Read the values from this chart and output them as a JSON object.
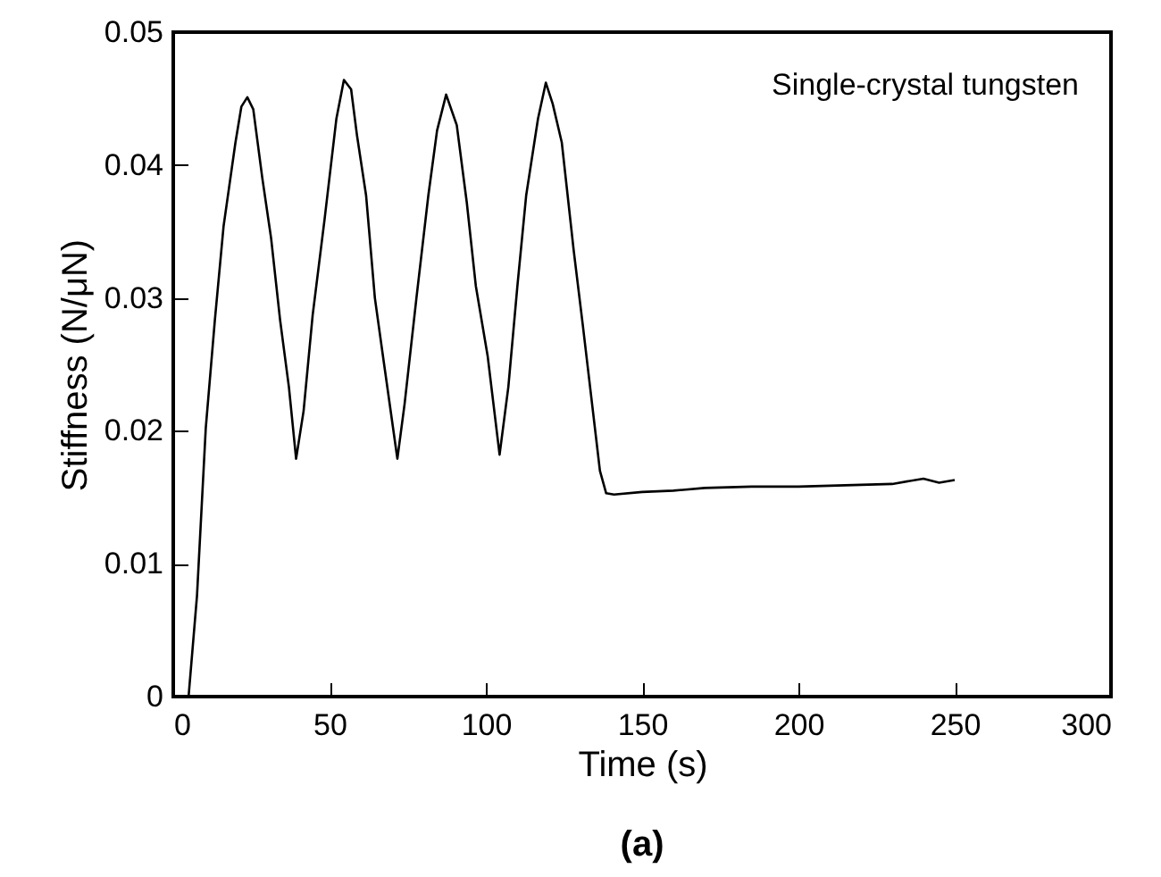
{
  "chart_data": {
    "type": "line",
    "xlabel": "Time (s)",
    "ylabel": "Stiffness (N/μN)",
    "annotations": [
      "Single-crystal tungsten",
      "(a)"
    ],
    "x": [
      4.9,
      7.6,
      10.4,
      13.3,
      16.1,
      19.9,
      21.8,
      23.7,
      25.6,
      28.5,
      31.3,
      34.2,
      37,
      39.3,
      41.7,
      44.6,
      48.4,
      52.2,
      54.6,
      56.9,
      58.8,
      61.7,
      64.5,
      67.4,
      71.7,
      74,
      77.8,
      81.6,
      84.4,
      87.3,
      90.7,
      93.9,
      96.8,
      100.6,
      104.4,
      107.2,
      110.1,
      112.9,
      116.7,
      119.2,
      121.4,
      124.3,
      128.1,
      131,
      134,
      136.5,
      138.5,
      141,
      150,
      160,
      170,
      185,
      200,
      215,
      230,
      240,
      245,
      250
    ],
    "series": [
      {
        "color": "#000000",
        "values": [
          0,
          0.0076,
          0.0202,
          0.0283,
          0.0354,
          0.0417,
          0.0444,
          0.0451,
          0.0442,
          0.039,
          0.0345,
          0.0283,
          0.0233,
          0.0179,
          0.0215,
          0.0287,
          0.0359,
          0.0435,
          0.0464,
          0.0457,
          0.0422,
          0.0377,
          0.03,
          0.0251,
          0.0179,
          0.022,
          0.03,
          0.0377,
          0.0426,
          0.0453,
          0.043,
          0.0372,
          0.0309,
          0.0256,
          0.0182,
          0.0233,
          0.0309,
          0.0377,
          0.0435,
          0.0462,
          0.0446,
          0.0417,
          0.0336,
          0.028,
          0.022,
          0.017,
          0.0153,
          0.0152,
          0.0154,
          0.0155,
          0.0157,
          0.0158,
          0.0158,
          0.0159,
          0.016,
          0.0164,
          0.0161,
          0.0163
        ]
      }
    ],
    "xlim": [
      0,
      300
    ],
    "xticks": [
      0,
      50,
      100,
      150,
      200,
      250,
      300
    ],
    "ylim": [
      0,
      0.05
    ],
    "yticks": [
      0,
      0.01,
      0.02,
      0.03,
      0.04,
      0.05
    ],
    "grid": false,
    "line_style": "solid",
    "marker": "none"
  }
}
